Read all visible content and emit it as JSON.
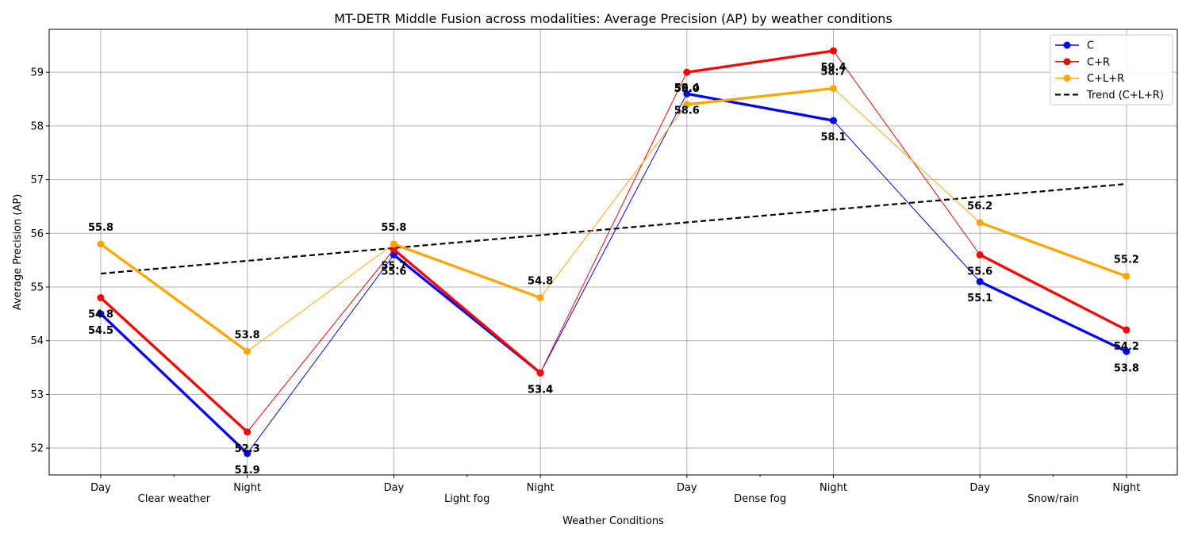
{
  "chart_data": {
    "type": "line",
    "title": "MT-DETR Middle Fusion across modalities: Average Precision (AP) by weather conditions",
    "xlabel": "Weather Conditions",
    "ylabel": "Average Precision (AP)",
    "categories": [
      "Day",
      "Night",
      "Day",
      "Night",
      "Day",
      "Night",
      "Day",
      "Night"
    ],
    "groups": [
      {
        "label": "Clear weather",
        "start": 0,
        "end": 1
      },
      {
        "label": "Light fog",
        "start": 2,
        "end": 3
      },
      {
        "label": "Dense fog",
        "start": 4,
        "end": 5
      },
      {
        "label": "Snow/rain",
        "start": 6,
        "end": 7
      }
    ],
    "ylim": [
      51.5,
      59.8
    ],
    "yticks": [
      52,
      53,
      54,
      55,
      56,
      57,
      58,
      59
    ],
    "grid": true,
    "legend_position": "top-right",
    "series": [
      {
        "name": "C",
        "color": "#0000ff",
        "values": [
          54.5,
          51.9,
          55.6,
          53.4,
          58.6,
          58.1,
          55.1,
          53.8
        ],
        "label_position": "below"
      },
      {
        "name": "C+R",
        "color": "#ff0000",
        "values": [
          54.8,
          52.3,
          55.7,
          53.4,
          59.0,
          59.4,
          55.6,
          54.2
        ],
        "label_position": "below"
      },
      {
        "name": "C+L+R",
        "color": "#ffa500",
        "values": [
          55.8,
          53.8,
          55.8,
          54.8,
          58.4,
          58.7,
          56.2,
          55.2
        ],
        "label_position": "above"
      }
    ],
    "trend": {
      "name": "Trend (C+L+R)",
      "color": "#000000",
      "values": [
        55.25,
        56.92
      ]
    }
  }
}
